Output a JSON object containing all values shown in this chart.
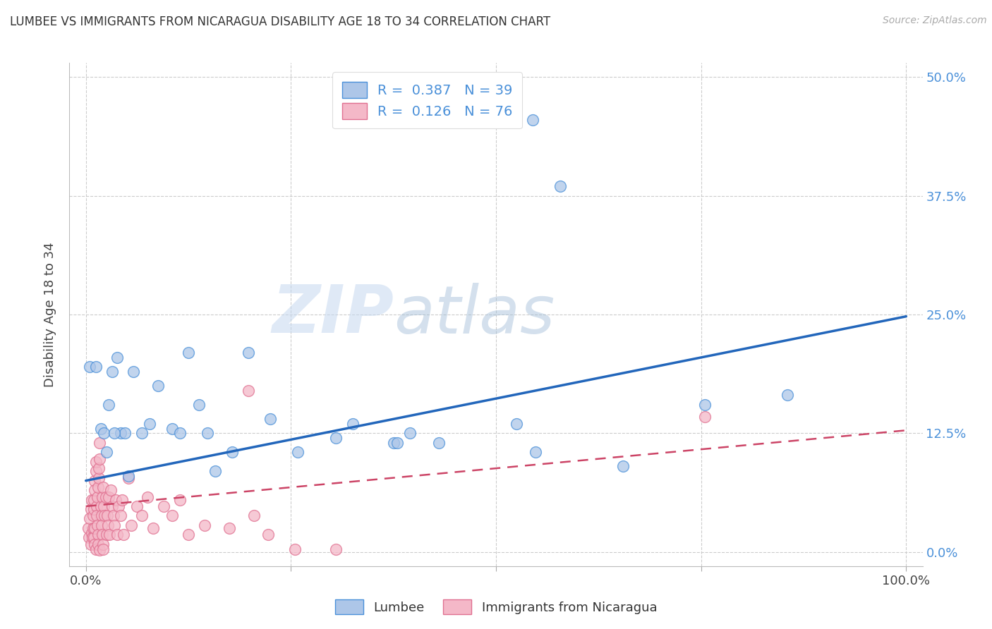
{
  "title": "LUMBEE VS IMMIGRANTS FROM NICARAGUA DISABILITY AGE 18 TO 34 CORRELATION CHART",
  "source": "Source: ZipAtlas.com",
  "ylabel": "Disability Age 18 to 34",
  "xlim": [
    -0.02,
    1.02
  ],
  "ylim": [
    -0.015,
    0.515
  ],
  "yticks": [
    0.0,
    0.125,
    0.25,
    0.375,
    0.5
  ],
  "ytick_labels": [
    "0.0%",
    "12.5%",
    "25.0%",
    "37.5%",
    "50.0%"
  ],
  "xticks": [
    0.0,
    0.25,
    0.5,
    0.75,
    1.0
  ],
  "xtick_labels": [
    "0.0%",
    "",
    "",
    "",
    "100.0%"
  ],
  "legend_label_blue": "Lumbee",
  "legend_label_pink": "Immigrants from Nicaragua",
  "R_blue": 0.387,
  "N_blue": 39,
  "R_pink": 0.126,
  "N_pink": 76,
  "blue_color": "#adc6e8",
  "blue_edge_color": "#4a90d9",
  "blue_line_color": "#2266bb",
  "pink_color": "#f4b8c8",
  "pink_edge_color": "#e07090",
  "pink_line_color": "#cc4466",
  "watermark_zip": "ZIP",
  "watermark_atlas": "atlas",
  "blue_line_x": [
    0.0,
    1.0
  ],
  "blue_line_y": [
    0.075,
    0.248
  ],
  "pink_line_x": [
    0.0,
    1.0
  ],
  "pink_line_y": [
    0.048,
    0.128
  ],
  "blue_scatter": [
    [
      0.005,
      0.195
    ],
    [
      0.012,
      0.195
    ],
    [
      0.018,
      0.13
    ],
    [
      0.022,
      0.125
    ],
    [
      0.025,
      0.105
    ],
    [
      0.028,
      0.155
    ],
    [
      0.032,
      0.19
    ],
    [
      0.038,
      0.205
    ],
    [
      0.042,
      0.125
    ],
    [
      0.048,
      0.125
    ],
    [
      0.052,
      0.08
    ],
    [
      0.058,
      0.19
    ],
    [
      0.068,
      0.125
    ],
    [
      0.078,
      0.135
    ],
    [
      0.088,
      0.175
    ],
    [
      0.105,
      0.13
    ],
    [
      0.115,
      0.125
    ],
    [
      0.125,
      0.21
    ],
    [
      0.138,
      0.155
    ],
    [
      0.148,
      0.125
    ],
    [
      0.158,
      0.085
    ],
    [
      0.178,
      0.105
    ],
    [
      0.198,
      0.21
    ],
    [
      0.225,
      0.14
    ],
    [
      0.258,
      0.105
    ],
    [
      0.305,
      0.12
    ],
    [
      0.325,
      0.135
    ],
    [
      0.375,
      0.115
    ],
    [
      0.395,
      0.125
    ],
    [
      0.38,
      0.115
    ],
    [
      0.525,
      0.135
    ],
    [
      0.548,
      0.105
    ],
    [
      0.578,
      0.385
    ],
    [
      0.655,
      0.09
    ],
    [
      0.755,
      0.155
    ],
    [
      0.855,
      0.165
    ],
    [
      0.545,
      0.455
    ],
    [
      0.43,
      0.115
    ],
    [
      0.035,
      0.125
    ]
  ],
  "pink_scatter": [
    [
      0.003,
      0.025
    ],
    [
      0.004,
      0.015
    ],
    [
      0.005,
      0.035
    ],
    [
      0.006,
      0.008
    ],
    [
      0.006,
      0.045
    ],
    [
      0.007,
      0.055
    ],
    [
      0.007,
      0.02
    ],
    [
      0.008,
      0.015
    ],
    [
      0.009,
      0.038
    ],
    [
      0.009,
      0.025
    ],
    [
      0.01,
      0.015
    ],
    [
      0.01,
      0.045
    ],
    [
      0.01,
      0.055
    ],
    [
      0.011,
      0.075
    ],
    [
      0.011,
      0.065
    ],
    [
      0.011,
      0.025
    ],
    [
      0.011,
      0.008
    ],
    [
      0.012,
      0.003
    ],
    [
      0.012,
      0.085
    ],
    [
      0.012,
      0.095
    ],
    [
      0.013,
      0.048
    ],
    [
      0.013,
      0.038
    ],
    [
      0.014,
      0.028
    ],
    [
      0.014,
      0.058
    ],
    [
      0.015,
      0.018
    ],
    [
      0.015,
      0.068
    ],
    [
      0.015,
      0.008
    ],
    [
      0.016,
      0.078
    ],
    [
      0.016,
      0.088
    ],
    [
      0.017,
      0.098
    ],
    [
      0.017,
      0.115
    ],
    [
      0.017,
      0.002
    ],
    [
      0.018,
      0.048
    ],
    [
      0.019,
      0.038
    ],
    [
      0.019,
      0.028
    ],
    [
      0.02,
      0.058
    ],
    [
      0.02,
      0.018
    ],
    [
      0.021,
      0.068
    ],
    [
      0.021,
      0.008
    ],
    [
      0.021,
      0.003
    ],
    [
      0.022,
      0.048
    ],
    [
      0.023,
      0.038
    ],
    [
      0.024,
      0.058
    ],
    [
      0.025,
      0.018
    ],
    [
      0.026,
      0.038
    ],
    [
      0.027,
      0.028
    ],
    [
      0.028,
      0.058
    ],
    [
      0.029,
      0.018
    ],
    [
      0.03,
      0.065
    ],
    [
      0.032,
      0.048
    ],
    [
      0.034,
      0.038
    ],
    [
      0.035,
      0.028
    ],
    [
      0.036,
      0.055
    ],
    [
      0.038,
      0.018
    ],
    [
      0.04,
      0.048
    ],
    [
      0.042,
      0.038
    ],
    [
      0.044,
      0.055
    ],
    [
      0.046,
      0.018
    ],
    [
      0.052,
      0.078
    ],
    [
      0.055,
      0.028
    ],
    [
      0.062,
      0.048
    ],
    [
      0.068,
      0.038
    ],
    [
      0.075,
      0.058
    ],
    [
      0.082,
      0.025
    ],
    [
      0.095,
      0.048
    ],
    [
      0.105,
      0.038
    ],
    [
      0.115,
      0.055
    ],
    [
      0.125,
      0.018
    ],
    [
      0.145,
      0.028
    ],
    [
      0.175,
      0.025
    ],
    [
      0.198,
      0.17
    ],
    [
      0.205,
      0.038
    ],
    [
      0.222,
      0.018
    ],
    [
      0.255,
      0.003
    ],
    [
      0.305,
      0.003
    ],
    [
      0.755,
      0.142
    ]
  ]
}
